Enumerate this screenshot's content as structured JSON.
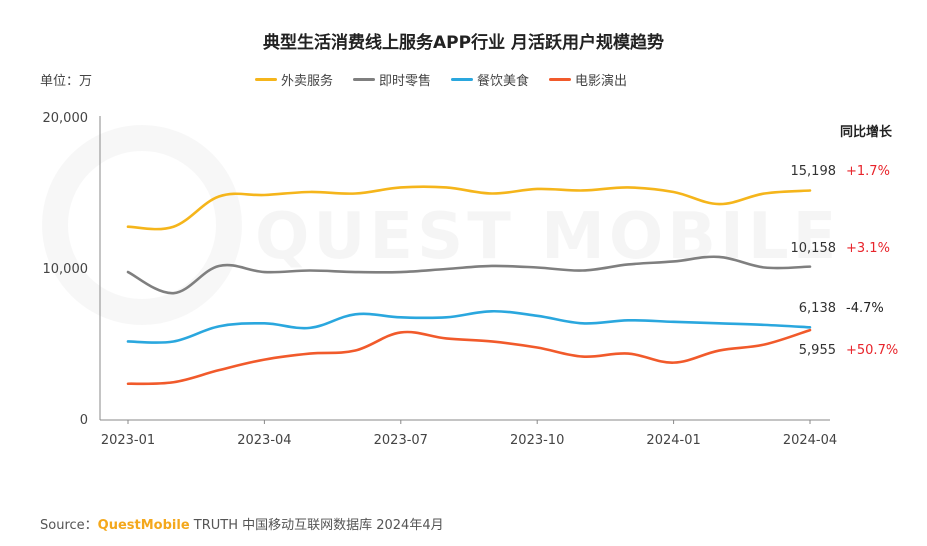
{
  "title": "典型生活消费线上服务APP行业 月活跃用户规模趋势",
  "unit_label": "单位：万",
  "growth_header": "同比增长",
  "watermark": "QUEST MOBILE",
  "source": {
    "prefix": "Source：",
    "brand": "QuestMobile",
    "rest": " TRUTH 中国移动互联网数据库 2024年4月"
  },
  "chart_data": {
    "type": "line",
    "title": "典型生活消费线上服务APP行业 月活跃用户规模趋势",
    "ylabel": "单位：万",
    "ylim": [
      0,
      20000
    ],
    "yticks": [
      0,
      10000,
      20000
    ],
    "ytick_labels": [
      "0",
      "10,000",
      "20,000"
    ],
    "x": [
      "2023-01",
      "2023-02",
      "2023-03",
      "2023-04",
      "2023-05",
      "2023-06",
      "2023-07",
      "2023-08",
      "2023-09",
      "2023-10",
      "2023-11",
      "2023-12",
      "2024-01",
      "2024-02",
      "2024-03",
      "2024-04"
    ],
    "xtick_labels": [
      "2023-01",
      "2023-04",
      "2023-07",
      "2023-10",
      "2024-01",
      "2024-04"
    ],
    "grid": false,
    "legend_position": "top",
    "series": [
      {
        "name": "外卖服务",
        "color": "#f5b51b",
        "values": [
          12800,
          12800,
          14800,
          14900,
          15100,
          15000,
          15400,
          15400,
          15000,
          15300,
          15200,
          15400,
          15100,
          14300,
          15000,
          15198
        ],
        "last_label": "15,198",
        "growth": "+1.7%",
        "growth_color": "#e8242b"
      },
      {
        "name": "即时零售",
        "color": "#7f7f7f",
        "values": [
          9800,
          8400,
          10200,
          9800,
          9900,
          9800,
          9800,
          10000,
          10200,
          10100,
          9900,
          10300,
          10500,
          10800,
          10100,
          10158
        ],
        "last_label": "10,158",
        "growth": "+3.1%",
        "growth_color": "#e8242b"
      },
      {
        "name": "餐饮美食",
        "color": "#2aa7de",
        "values": [
          5200,
          5200,
          6200,
          6400,
          6100,
          7000,
          6800,
          6800,
          7200,
          6900,
          6400,
          6600,
          6500,
          6400,
          6300,
          6138
        ],
        "last_label": "6,138",
        "growth": "-4.7%",
        "growth_color": "#222222"
      },
      {
        "name": "电影演出",
        "color": "#f15a2b",
        "values": [
          2400,
          2500,
          3300,
          4000,
          4400,
          4600,
          5800,
          5400,
          5200,
          4800,
          4200,
          4400,
          3800,
          4600,
          5000,
          5955
        ],
        "last_label": "5,955",
        "growth": "+50.7%",
        "growth_color": "#e8242b"
      }
    ]
  }
}
